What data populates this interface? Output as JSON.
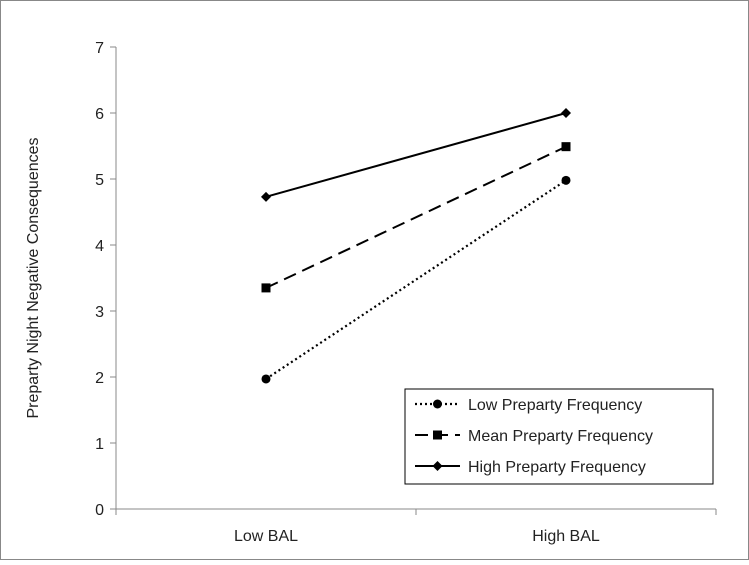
{
  "chart_data": {
    "type": "line",
    "title": "",
    "xlabel": "",
    "ylabel": "Preparty Night Negative Consequences",
    "categories": [
      "Low BAL",
      "High BAL"
    ],
    "ylim": [
      0,
      7
    ],
    "yticks": [
      "0",
      "1",
      "2",
      "3",
      "4",
      "5",
      "6",
      "7"
    ],
    "grid": false,
    "legend_position": "bottom-right",
    "series": [
      {
        "name": "Low Preparty Frequency",
        "values": [
          1.97,
          4.98
        ],
        "line_style": "dotted",
        "marker": "circle",
        "color": "#000000"
      },
      {
        "name": "Mean Preparty Frequency",
        "values": [
          3.35,
          5.49
        ],
        "line_style": "dashed",
        "marker": "square",
        "color": "#000000"
      },
      {
        "name": "High Preparty Frequency",
        "values": [
          4.73,
          6.0
        ],
        "line_style": "solid",
        "marker": "diamond",
        "color": "#000000"
      }
    ]
  }
}
